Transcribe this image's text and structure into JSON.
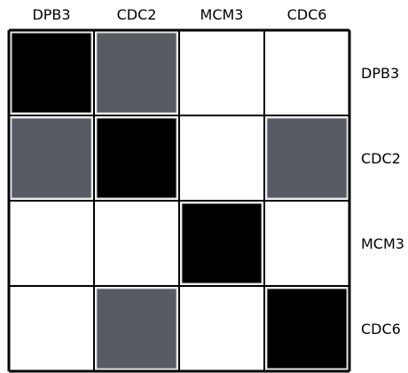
{
  "matrix": {
    "column_labels": [
      "DPB3",
      "CDC2",
      "MCM3",
      "CDC6"
    ],
    "row_labels": [
      "DPB3",
      "CDC2",
      "MCM3",
      "CDC6"
    ],
    "cells": [
      [
        "strong",
        "medium",
        "none",
        "none"
      ],
      [
        "medium",
        "strong",
        "none",
        "medium"
      ],
      [
        "none",
        "none",
        "strong",
        "none"
      ],
      [
        "none",
        "medium",
        "none",
        "strong"
      ]
    ],
    "colors": {
      "strong": "#000000",
      "medium": "#555a63",
      "none": "#ffffff",
      "grid": "#000000",
      "cell_outline": "#c8c8c8"
    }
  }
}
